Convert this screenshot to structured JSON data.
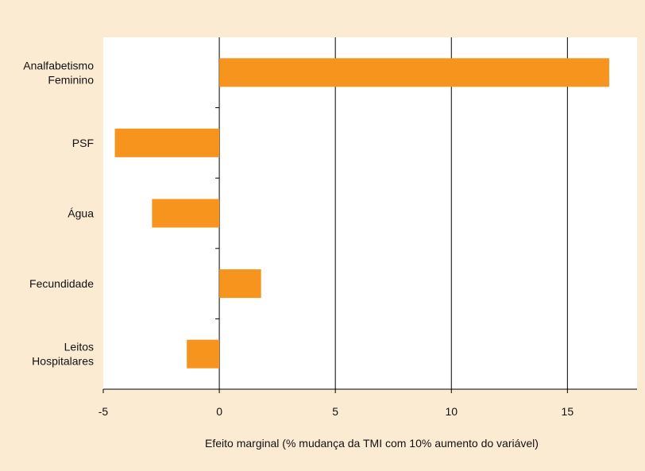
{
  "chart_data": {
    "type": "bar",
    "orientation": "horizontal",
    "categories": [
      "Analfabetismo Feminino",
      "PSF",
      "Água",
      "Fecundidade",
      "Leitos Hospitalares"
    ],
    "category_lines": [
      [
        "Analfabetismo",
        "Feminino"
      ],
      [
        "PSF"
      ],
      [
        "Água"
      ],
      [
        "Fecundidade"
      ],
      [
        "Leitos",
        "Hospitalares"
      ]
    ],
    "values": [
      16.8,
      -4.5,
      -2.9,
      1.8,
      -1.4
    ],
    "xlabel": "Efeito marginal (% mudança da TMI com 10% aumento do variável)",
    "ylabel": "",
    "title": "",
    "xlim": [
      -5,
      18
    ],
    "xticks": [
      -5,
      0,
      5,
      10,
      15
    ],
    "xtick_labels": [
      "-5",
      "0",
      "5",
      "10",
      "15"
    ],
    "grid": "vertical",
    "bar_color": "#f7941d",
    "background": "#fcebd3",
    "plot_background": "#ffffff"
  }
}
